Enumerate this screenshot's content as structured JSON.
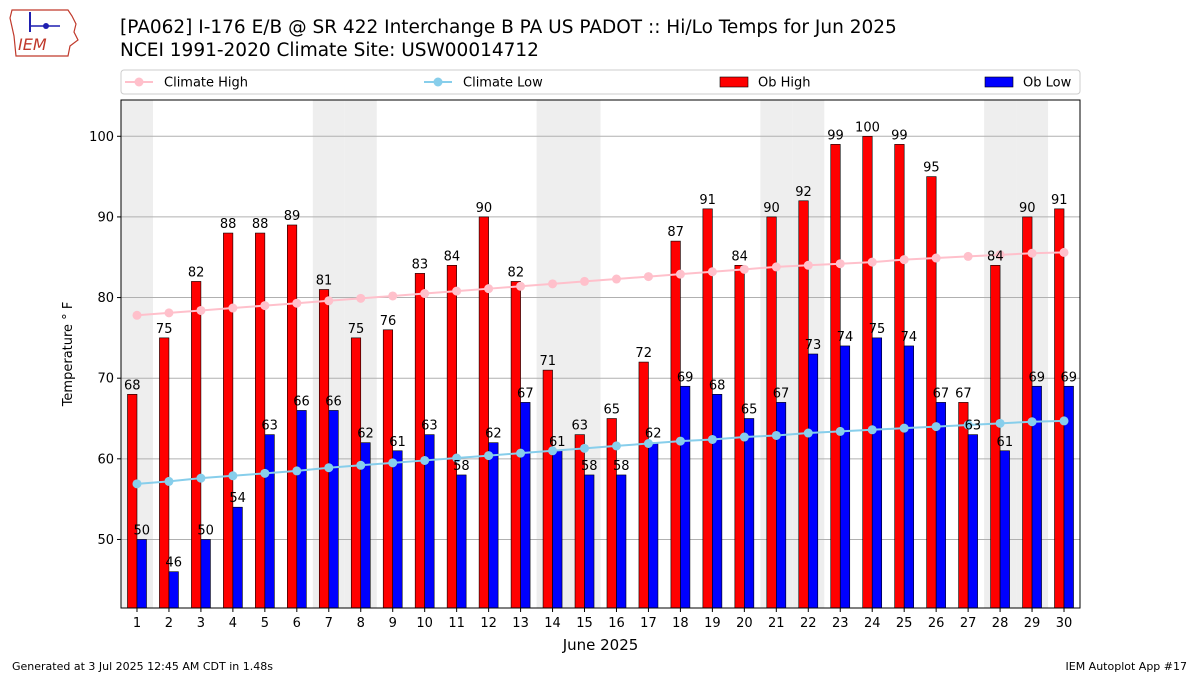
{
  "header": {
    "logo_text": "IEM",
    "title_line1": "[PA062] I-176 E/B @ SR 422 Interchange B PA US  PADOT :: Hi/Lo Temps for Jun 2025",
    "title_line2": "NCEI 1991-2020 Climate Site: USW00014712"
  },
  "footer": {
    "generated": "Generated at 3 Jul 2025 12:45 AM CDT in 1.48s",
    "app": "IEM Autoplot App #17"
  },
  "colors": {
    "ob_high": "#ff0000",
    "ob_low": "#0000ff",
    "climate_high": "#ffc0cb",
    "climate_low": "#87ceeb",
    "weekend_band": "#eeeeee",
    "grid": "#b0b0b0"
  },
  "chart_data": {
    "type": "bar",
    "xlabel": "June 2025",
    "ylabel": "Temperature ° F",
    "ylim": [
      41.5,
      104.5
    ],
    "yticks": [
      50,
      60,
      70,
      80,
      90,
      100
    ],
    "grid": "horizontal",
    "legend_position": "top",
    "categories": [
      1,
      2,
      3,
      4,
      5,
      6,
      7,
      8,
      9,
      10,
      11,
      12,
      13,
      14,
      15,
      16,
      17,
      18,
      19,
      20,
      21,
      22,
      23,
      24,
      25,
      26,
      27,
      28,
      29,
      30
    ],
    "shaded_days": [
      1,
      7,
      8,
      14,
      15,
      21,
      22,
      28,
      29
    ],
    "series": [
      {
        "name": "Climate High",
        "kind": "line",
        "values": [
          77.8,
          78.1,
          78.4,
          78.7,
          79.0,
          79.3,
          79.6,
          79.9,
          80.2,
          80.5,
          80.8,
          81.1,
          81.4,
          81.7,
          82.0,
          82.3,
          82.6,
          82.9,
          83.2,
          83.5,
          83.8,
          84.0,
          84.2,
          84.4,
          84.7,
          84.9,
          85.1,
          85.3,
          85.5,
          85.6
        ]
      },
      {
        "name": "Climate Low",
        "kind": "line",
        "values": [
          56.9,
          57.2,
          57.6,
          57.9,
          58.2,
          58.5,
          58.9,
          59.2,
          59.5,
          59.8,
          60.1,
          60.4,
          60.7,
          61.0,
          61.3,
          61.6,
          61.9,
          62.2,
          62.4,
          62.7,
          62.9,
          63.2,
          63.4,
          63.6,
          63.8,
          64.0,
          64.2,
          64.4,
          64.6,
          64.7
        ]
      },
      {
        "name": "Ob High",
        "kind": "bar",
        "values": [
          68,
          75,
          82,
          88,
          88,
          89,
          81,
          75,
          76,
          83,
          84,
          90,
          82,
          71,
          63,
          65,
          72,
          87,
          91,
          84,
          90,
          92,
          99,
          100,
          99,
          95,
          67,
          84,
          90,
          91
        ]
      },
      {
        "name": "Ob Low",
        "kind": "bar",
        "values": [
          50,
          46,
          50,
          54,
          63,
          66,
          66,
          62,
          61,
          63,
          58,
          62,
          67,
          61,
          58,
          58,
          62,
          69,
          68,
          65,
          67,
          73,
          74,
          75,
          74,
          67,
          63,
          61,
          69,
          69
        ]
      }
    ]
  }
}
